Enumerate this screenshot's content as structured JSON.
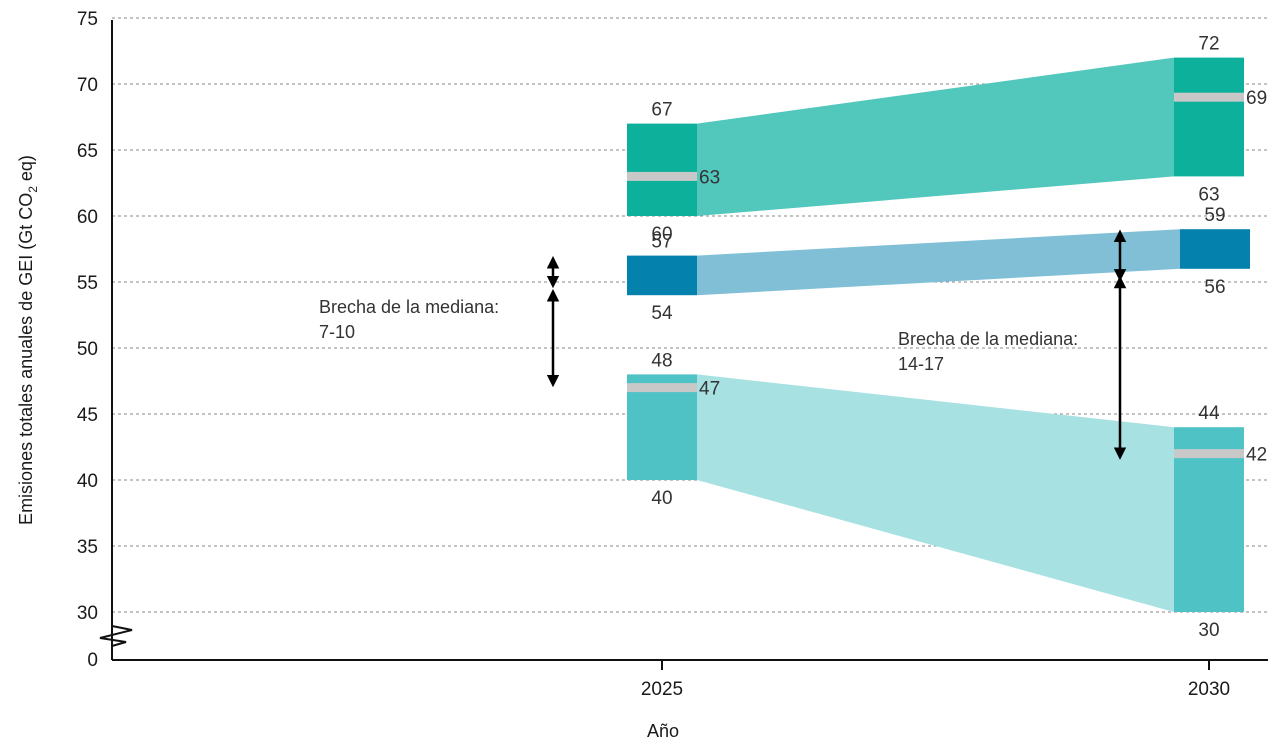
{
  "chart_data": {
    "type": "bar",
    "xlabel": "Año",
    "ylabel_parts": [
      "Emisiones totales anuales de GEI (Gt CO",
      "2",
      " eq)"
    ],
    "ylim": [
      30,
      75
    ],
    "axis_break_label": "0",
    "yticks": [
      30,
      35,
      40,
      45,
      50,
      55,
      60,
      65,
      70,
      75
    ],
    "categories": [
      "2025",
      "2030"
    ],
    "grid": true,
    "colors": {
      "top_bar": "#0db09b",
      "top_band": "#52c7bc",
      "mid_bar": "#0581ad",
      "mid_band": "#80bfd6",
      "low_bar": "#4fc2c5",
      "low_band": "#a7e1e2",
      "median": "#c8c8c8"
    },
    "series": [
      {
        "ranges": [
          {
            "x": "2025",
            "low": 60,
            "high": 67,
            "median": 63
          },
          {
            "x": "2030",
            "low": 63,
            "high": 72,
            "median": 69
          }
        ],
        "labels": {
          "2025": {
            "high": "67",
            "median": "63",
            "low": "60"
          },
          "2030": {
            "high": "72",
            "median": "69",
            "low": "63"
          }
        }
      },
      {
        "ranges": [
          {
            "x": "2025",
            "low": 54,
            "high": 57
          },
          {
            "x": "2030",
            "low": 56,
            "high": 59
          }
        ],
        "labels": {
          "2025": {
            "high": "57",
            "low": "54"
          },
          "2030": {
            "high": "59",
            "low": "56"
          }
        }
      },
      {
        "ranges": [
          {
            "x": "2025",
            "low": 40,
            "high": 48,
            "median": 47
          },
          {
            "x": "2030",
            "low": 30,
            "high": 44,
            "median": 42
          }
        ],
        "labels": {
          "2025": {
            "high": "48",
            "median": "47",
            "low": "40"
          },
          "2030": {
            "high": "44",
            "median": "42",
            "low": "30"
          }
        }
      }
    ],
    "annotations": [
      {
        "line1": "Brecha de la mediana:",
        "line2": "7-10",
        "arrow_top": [
          56.5,
          55.0
        ],
        "arrow_bottom": [
          54.0,
          47.5
        ]
      },
      {
        "line1": "Brecha de la mediana:",
        "line2": "14-17",
        "arrow_top": [
          58.5,
          55.5
        ],
        "arrow_bottom": [
          55.0,
          42.0
        ]
      }
    ]
  }
}
